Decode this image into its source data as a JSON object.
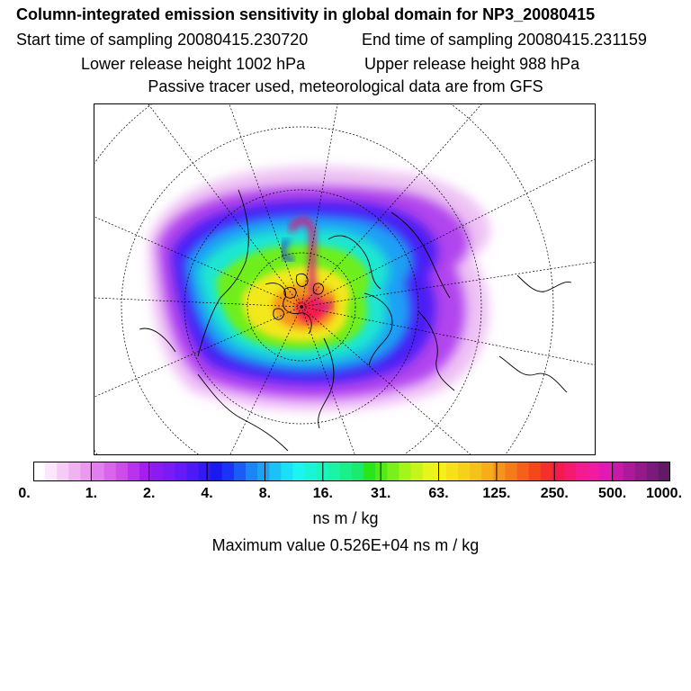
{
  "title": "Column-integrated emission sensitivity in global domain for NP3_20080415",
  "start_time": "Start time of sampling 20080415.230720",
  "end_time": "End time of sampling 20080415.231159",
  "lower_release": "Lower release height 1002 hPa",
  "upper_release": "Upper release height  988 hPa",
  "tracer_note": "Passive tracer used, meteorological data are from GFS",
  "colorbar": {
    "ticks": [
      "0.",
      "1.",
      "2.",
      "4.",
      "8.",
      "16.",
      "31.",
      "63.",
      "125.",
      "250.",
      "500.",
      "1000."
    ],
    "colors": [
      "#ffffff",
      "#fbe6fb",
      "#f6ccf6",
      "#f0b3f2",
      "#eb99ef",
      "#e17fec",
      "#d766ea",
      "#cc4de8",
      "#b833ee",
      "#a31ff0",
      "#8c1af2",
      "#7a1af5",
      "#661af7",
      "#4d1af7",
      "#331af5",
      "#1a1af0",
      "#1a33f5",
      "#1a5cf5",
      "#1a85f5",
      "#1aa3f5",
      "#1ac2f5",
      "#1ae0f5",
      "#1af5f0",
      "#1af5d6",
      "#1af5bd",
      "#1af5a3",
      "#1af08a",
      "#1aeb70",
      "#29e61a",
      "#52eb1a",
      "#7af01a",
      "#a3f51a",
      "#c7f51a",
      "#e6f51a",
      "#f5f01a",
      "#f5e01a",
      "#f5d11a",
      "#f5c21a",
      "#f5ad1a",
      "#f5941a",
      "#f57a1a",
      "#f5611a",
      "#f5471a",
      "#f52e2e",
      "#f51a4d",
      "#f51a70",
      "#f51a8f",
      "#f01aa3",
      "#e01ab3",
      "#c71aa8",
      "#ad1a99",
      "#941a8a",
      "#7a1a7a",
      "#611a66"
    ]
  },
  "unit": "ns m / kg",
  "max_value": "Maximum value  0.526E+04 ns m / kg"
}
